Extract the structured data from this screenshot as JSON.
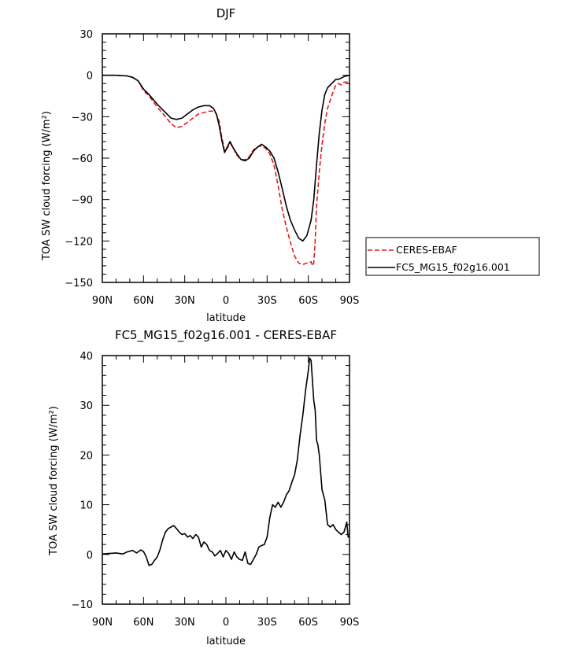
{
  "chart_data": [
    {
      "type": "line",
      "title": "DJF",
      "xlabel": "latitude",
      "ylabel": "TOA SW cloud forcing (W/m²)",
      "ylim": [
        -150,
        30
      ],
      "yticks": [
        30,
        0,
        -30,
        -60,
        -90,
        -120,
        -150
      ],
      "xlim": [
        90,
        -90
      ],
      "xticks": [
        {
          "value": 90,
          "label": "90N"
        },
        {
          "value": 60,
          "label": "60N"
        },
        {
          "value": 30,
          "label": "30N"
        },
        {
          "value": 0,
          "label": "0"
        },
        {
          "value": -30,
          "label": "30S"
        },
        {
          "value": -60,
          "label": "60S"
        },
        {
          "value": -90,
          "label": "90S"
        }
      ],
      "grid": false,
      "legend": {
        "placement": "right-outside",
        "entries": [
          {
            "name": "CERES-EBAF",
            "color": "#e41a1c",
            "dash": true
          },
          {
            "name": "FC5_MG15_f02g16.001",
            "color": "#000000",
            "dash": false
          }
        ]
      },
      "series": [
        {
          "name": "CERES-EBAF",
          "color": "#e41a1c",
          "dash": true,
          "x": [
            90,
            80,
            72,
            68,
            64,
            60,
            56,
            50,
            44,
            40,
            36,
            32,
            28,
            24,
            20,
            16,
            12,
            9,
            7,
            5,
            3,
            1,
            -1,
            -3,
            -5,
            -8,
            -11,
            -14,
            -17,
            -20,
            -23,
            -26,
            -29,
            -32,
            -35,
            -38,
            -41,
            -44,
            -47,
            -50,
            -53,
            -56,
            -59,
            -62,
            -63,
            -64,
            -65,
            -66,
            -68,
            -70,
            -72,
            -74,
            -76,
            -78,
            -80,
            -82,
            -84,
            -86,
            -88,
            -90
          ],
          "y": [
            0,
            0,
            -0.5,
            -1.5,
            -4,
            -11,
            -15,
            -23,
            -30,
            -35,
            -38,
            -37,
            -34,
            -31,
            -28,
            -27,
            -26,
            -26,
            -28,
            -33,
            -45,
            -55,
            -53,
            -49,
            -52,
            -58,
            -61,
            -61,
            -59,
            -54,
            -52,
            -51,
            -53,
            -57,
            -65,
            -80,
            -97,
            -110,
            -121,
            -131,
            -136,
            -137,
            -136,
            -135,
            -138,
            -136,
            -120,
            -95,
            -70,
            -50,
            -35,
            -24,
            -18,
            -12,
            -7,
            -6,
            -7,
            -5,
            -5,
            -5
          ]
        },
        {
          "name": "FC5_MG15_f02g16.001",
          "color": "#000000",
          "dash": false,
          "x": [
            90,
            80,
            72,
            68,
            64,
            60,
            56,
            50,
            44,
            40,
            36,
            32,
            28,
            24,
            20,
            16,
            12,
            9,
            7,
            5,
            3,
            1,
            -1,
            -3,
            -5,
            -8,
            -11,
            -14,
            -17,
            -20,
            -23,
            -26,
            -29,
            -32,
            -35,
            -38,
            -41,
            -44,
            -47,
            -50,
            -53,
            -56,
            -59,
            -62,
            -64,
            -66,
            -68,
            -70,
            -72,
            -74,
            -76,
            -78,
            -80,
            -82,
            -84,
            -86,
            -88,
            -90
          ],
          "y": [
            0,
            0,
            -0.5,
            -1.5,
            -4,
            -10,
            -14,
            -21,
            -27,
            -31,
            -32,
            -31,
            -28,
            -25,
            -23,
            -22,
            -22,
            -24,
            -28,
            -36,
            -47,
            -56,
            -52,
            -48,
            -52,
            -57,
            -61,
            -62,
            -60,
            -55,
            -52,
            -50,
            -52,
            -55,
            -60,
            -70,
            -82,
            -95,
            -105,
            -112,
            -118,
            -120,
            -116,
            -105,
            -90,
            -65,
            -42,
            -25,
            -14,
            -9,
            -7,
            -5,
            -3,
            -3,
            -2,
            -1,
            -0.5,
            0
          ]
        }
      ]
    },
    {
      "type": "line",
      "title": "FC5_MG15_f02g16.001 - CERES-EBAF",
      "xlabel": "latitude",
      "ylabel": "TOA SW cloud forcing (W/m²)",
      "ylim": [
        -10,
        40
      ],
      "yticks": [
        40,
        30,
        20,
        10,
        0,
        -10
      ],
      "xlim": [
        90,
        -90
      ],
      "xticks": [
        {
          "value": 90,
          "label": "90N"
        },
        {
          "value": 60,
          "label": "60N"
        },
        {
          "value": 30,
          "label": "30N"
        },
        {
          "value": 0,
          "label": "0"
        },
        {
          "value": -30,
          "label": "30S"
        },
        {
          "value": -60,
          "label": "60S"
        },
        {
          "value": -90,
          "label": "90S"
        }
      ],
      "grid": false,
      "series": [
        {
          "color": "#000000",
          "dash": false,
          "x": [
            90,
            80,
            75,
            72,
            68,
            65,
            62,
            60,
            58,
            56,
            54,
            52,
            50,
            48,
            46,
            44,
            42,
            40,
            38,
            36,
            34,
            32,
            30,
            28,
            26,
            24,
            22,
            20,
            18,
            16,
            14,
            12,
            10,
            8,
            6,
            4,
            2,
            0,
            -2,
            -4,
            -6,
            -8,
            -10,
            -12,
            -14,
            -16,
            -18,
            -20,
            -22,
            -24,
            -26,
            -28,
            -30,
            -32,
            -34,
            -36,
            -38,
            -40,
            -42,
            -44,
            -46,
            -48,
            -50,
            -52,
            -54,
            -56,
            -58,
            -60,
            -61,
            -62,
            -63,
            -64,
            -65,
            -66,
            -67,
            -68,
            -70,
            -72,
            -74,
            -76,
            -78,
            -80,
            -82,
            -84,
            -86,
            -88,
            -89,
            -90
          ],
          "y": [
            0.1,
            0.3,
            0.1,
            0.5,
            0.8,
            0.3,
            0.9,
            0.6,
            -0.5,
            -2.2,
            -2.0,
            -1.2,
            -0.5,
            1.0,
            3.0,
            4.5,
            5.2,
            5.5,
            5.8,
            5.2,
            4.5,
            4.0,
            4.2,
            3.5,
            3.8,
            3.2,
            4.0,
            3.5,
            1.5,
            2.5,
            2.0,
            0.8,
            0.5,
            -0.3,
            0.2,
            0.8,
            -0.5,
            0.8,
            0.2,
            -1.0,
            0.5,
            -0.5,
            -1.0,
            -1.2,
            0.5,
            -1.8,
            -2.0,
            -1.0,
            0.0,
            1.5,
            1.8,
            2.0,
            3.5,
            7.5,
            10.0,
            9.5,
            10.5,
            9.5,
            10.5,
            12.0,
            12.8,
            14.5,
            16.0,
            19.0,
            24.0,
            28.0,
            33.0,
            37.0,
            39.5,
            39.0,
            35.0,
            31.0,
            29.0,
            23.0,
            22.0,
            20.0,
            13.0,
            11.0,
            6.0,
            5.5,
            6.0,
            5.0,
            4.5,
            4.0,
            4.5,
            6.5,
            3.5,
            3.5
          ]
        }
      ]
    }
  ]
}
